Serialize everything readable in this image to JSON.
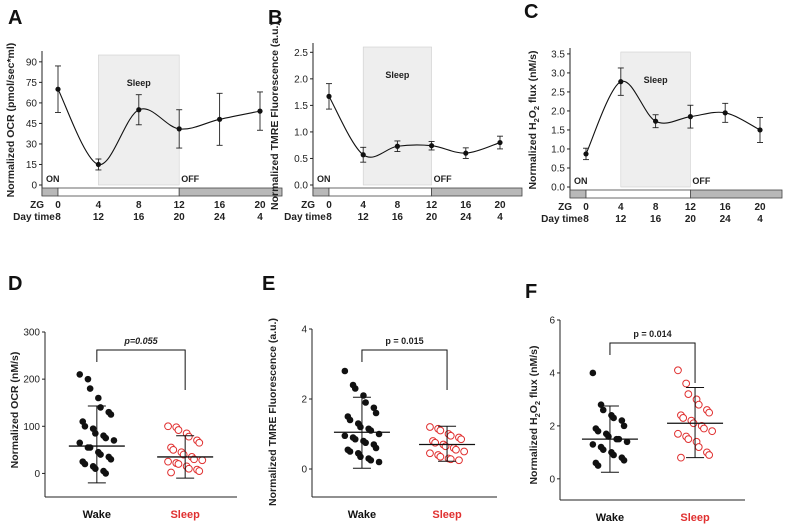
{
  "colors": {
    "wake": "#111111",
    "sleep": "#e03030",
    "shade": "#eeeeee",
    "dark_bar": "#b8b8b8"
  },
  "chart_data": [
    {
      "panel": "A",
      "type": "line",
      "ylabel": "Normalized OCR (pmol/sec*ml)",
      "yticks": [
        0,
        15,
        30,
        45,
        60,
        75,
        90
      ],
      "ylim": [
        0,
        95
      ],
      "zg_label": "ZG",
      "daytime_label": "Day time",
      "zg_ticks": [
        "0",
        "4",
        "8",
        "12",
        "16",
        "20"
      ],
      "daytime_ticks": [
        "8",
        "12",
        "16",
        "20",
        "24",
        "4"
      ],
      "x": [
        0,
        4,
        8,
        12,
        16,
        20
      ],
      "values": [
        70,
        15,
        55,
        41,
        48,
        54
      ],
      "err": [
        17,
        4,
        11,
        14,
        19,
        14
      ],
      "sleep_label": "Sleep",
      "on_label": "ON",
      "off_label": "OFF"
    },
    {
      "panel": "B",
      "type": "line",
      "ylabel": "Normalized TMRE Fluorescence (a.u.)",
      "yticks": [
        0.0,
        0.5,
        1.0,
        1.5,
        2.0,
        2.5
      ],
      "ylim": [
        0,
        2.6
      ],
      "zg_label": "ZG",
      "daytime_label": "Day time",
      "zg_ticks": [
        "0",
        "4",
        "8",
        "12",
        "16",
        "20"
      ],
      "daytime_ticks": [
        "8",
        "12",
        "16",
        "20",
        "24",
        "4"
      ],
      "x": [
        0,
        4,
        8,
        12,
        16,
        20
      ],
      "values": [
        1.67,
        0.57,
        0.73,
        0.74,
        0.6,
        0.8
      ],
      "err": [
        0.24,
        0.14,
        0.1,
        0.08,
        0.1,
        0.12
      ],
      "sleep_label": "Sleep",
      "on_label": "ON",
      "off_label": "OFF"
    },
    {
      "panel": "C",
      "type": "line",
      "ylabel_pre": "Normalized H",
      "ylabel_sub1": "2",
      "ylabel_mid": "O",
      "ylabel_sub2": "2",
      "ylabel_post": " flux (nM/s)",
      "yticks": [
        0.0,
        0.5,
        1.0,
        1.5,
        2.0,
        2.5,
        3.0,
        3.5
      ],
      "ylim": [
        0,
        3.55
      ],
      "zg_label": "ZG",
      "daytime_label": "Day time",
      "zg_ticks": [
        "0",
        "4",
        "8",
        "12",
        "16",
        "20"
      ],
      "daytime_ticks": [
        "8",
        "12",
        "16",
        "20",
        "24",
        "4"
      ],
      "x": [
        0,
        4,
        8,
        12,
        16,
        20
      ],
      "values": [
        0.87,
        2.77,
        1.73,
        1.85,
        1.95,
        1.5
      ],
      "err": [
        0.15,
        0.36,
        0.17,
        0.3,
        0.25,
        0.33
      ],
      "sleep_label": "Sleep",
      "on_label": "ON",
      "off_label": "OFF"
    },
    {
      "panel": "D",
      "type": "scatter",
      "ylabel": "Normalized OCR (nM/s)",
      "yticks": [
        0,
        100,
        200,
        300
      ],
      "ylim": [
        -50,
        300
      ],
      "categories": [
        "Wake",
        "Sleep"
      ],
      "p_label": "p=0.055",
      "wake": {
        "mean": 58,
        "sd_low": -20,
        "sd_high": 143,
        "points": [
          210,
          200,
          180,
          160,
          140,
          130,
          125,
          110,
          100,
          95,
          85,
          80,
          75,
          70,
          65,
          55,
          55,
          45,
          40,
          35,
          30,
          25,
          20,
          15,
          10,
          5,
          0
        ]
      },
      "sleep": {
        "mean": 35,
        "sd_low": -10,
        "sd_high": 80,
        "points": [
          100,
          98,
          92,
          85,
          78,
          70,
          65,
          55,
          50,
          45,
          40,
          35,
          30,
          28,
          25,
          22,
          20,
          15,
          10,
          8,
          5,
          2
        ]
      }
    },
    {
      "panel": "E",
      "type": "scatter",
      "ylabel": "Normalized TMRE Fluorescence (a.u.)",
      "yticks": [
        0,
        2,
        4
      ],
      "ylim": [
        -0.8,
        4
      ],
      "categories": [
        "Wake",
        "Sleep"
      ],
      "p_label": "p = 0.015",
      "wake": {
        "mean": 1.05,
        "sd_low": 0.02,
        "sd_high": 2.05,
        "points": [
          2.8,
          2.4,
          2.3,
          2.1,
          1.9,
          1.75,
          1.6,
          1.5,
          1.4,
          1.3,
          1.2,
          1.15,
          1.1,
          1.0,
          0.95,
          0.9,
          0.85,
          0.8,
          0.75,
          0.7,
          0.6,
          0.55,
          0.5,
          0.45,
          0.35,
          0.3,
          0.25,
          0.2
        ]
      },
      "sleep": {
        "mean": 0.7,
        "sd_low": 0.22,
        "sd_high": 1.22,
        "points": [
          1.2,
          1.15,
          1.1,
          1.0,
          0.95,
          0.9,
          0.85,
          0.8,
          0.75,
          0.7,
          0.65,
          0.6,
          0.55,
          0.5,
          0.45,
          0.4,
          0.35,
          0.3,
          0.28,
          0.25
        ]
      }
    },
    {
      "panel": "F",
      "type": "scatter",
      "ylabel_pre": "Normalized H",
      "ylabel_sub1": "2",
      "ylabel_mid": "O",
      "ylabel_sub2": "2",
      "ylabel_post": " flux (nM/s)",
      "yticks": [
        0,
        2,
        4,
        6
      ],
      "ylim": [
        -0.8,
        6
      ],
      "categories": [
        "Wake",
        "Sleep"
      ],
      "p_label": "p = 0.014",
      "wake": {
        "mean": 1.5,
        "sd_low": 0.25,
        "sd_high": 2.75,
        "points": [
          4.0,
          2.8,
          2.6,
          2.4,
          2.3,
          2.2,
          2.0,
          1.9,
          1.8,
          1.7,
          1.6,
          1.5,
          1.5,
          1.4,
          1.3,
          1.2,
          1.1,
          1.0,
          0.9,
          0.8,
          0.7,
          0.6,
          0.5
        ]
      },
      "sleep": {
        "mean": 2.1,
        "sd_low": 0.8,
        "sd_high": 3.45,
        "points": [
          4.1,
          3.6,
          3.2,
          3.0,
          2.8,
          2.6,
          2.5,
          2.4,
          2.3,
          2.2,
          2.1,
          2.0,
          1.9,
          1.8,
          1.7,
          1.6,
          1.5,
          1.4,
          1.2,
          1.0,
          0.9,
          0.8
        ]
      }
    }
  ]
}
